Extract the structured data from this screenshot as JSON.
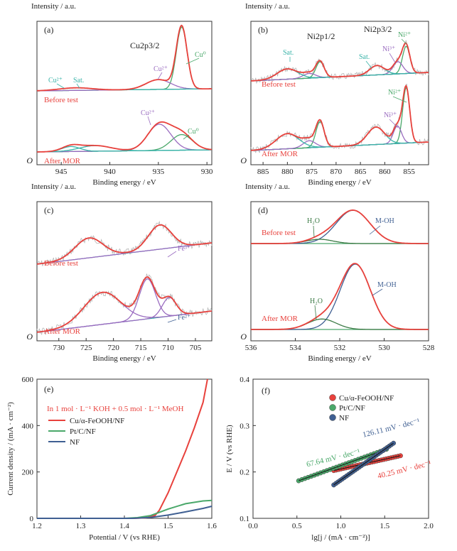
{
  "colors": {
    "red": "#e8413c",
    "green": "#4aa86a",
    "purple": "#9a6cc0",
    "teal": "#39b3a8",
    "orange": "#d9862a",
    "navy": "#3f5f92",
    "raw": "#b6b6b6",
    "background": "#2ba9a4",
    "darkgreen": "#3b7a45"
  },
  "chart_data": [
    {
      "panel": "(a)",
      "type": "line",
      "ylabel": "Intensity / a.u.",
      "xlabel": "Binding energy / eV",
      "xlim": [
        947.5,
        929.5
      ],
      "x_ticks": [
        945,
        940,
        935,
        930
      ],
      "y_zero_label": "O",
      "title": "Cu2p3/2",
      "traces": [
        {
          "label": "Before test",
          "components": [
            {
              "name": "Cu⁰",
              "center": 932.6,
              "fwhm": 1.3,
              "height": 0.95
            },
            {
              "name": "Cu²⁺",
              "center": 935.0,
              "fwhm": 3.0,
              "height": 0.15
            },
            {
              "name": "Sat.",
              "center": 943.5,
              "fwhm": 4.0,
              "height": 0.04
            }
          ]
        },
        {
          "label": "After MOR",
          "components": [
            {
              "name": "Cu⁰",
              "center": 932.6,
              "fwhm": 2.6,
              "height": 0.25
            },
            {
              "name": "Cu²⁺",
              "center": 934.9,
              "fwhm": 2.8,
              "height": 0.42
            },
            {
              "name": "Sat.",
              "center": 944.0,
              "fwhm": 2.2,
              "height": 0.08
            },
            {
              "name": "Sat.",
              "center": 941.5,
              "fwhm": 3.8,
              "height": 0.09
            }
          ]
        }
      ],
      "annotations": [
        "Cu²⁺",
        "Sat.",
        "Cu²⁺",
        "Cu⁰",
        "Cu²⁺",
        "Cu⁰"
      ]
    },
    {
      "panel": "(b)",
      "type": "line",
      "ylabel": "Intensity / a.u.",
      "xlabel": "Binding energy / eV",
      "xlim": [
        887.5,
        851
      ],
      "x_ticks": [
        885,
        880,
        875,
        870,
        865,
        860,
        855
      ],
      "y_zero_label": "O",
      "title_1": "Ni2p1/2",
      "title_2": "Ni2p3/2",
      "traces": [
        {
          "label": "Before test",
          "components": [
            {
              "name": "Ni²⁺",
              "center": 855.6,
              "fwhm": 1.8,
              "height": 0.58
            },
            {
              "name": "Ni³⁺",
              "center": 857.3,
              "fwhm": 2.4,
              "height": 0.26
            },
            {
              "name": "Sat.",
              "center": 861.6,
              "fwhm": 3.6,
              "height": 0.2
            },
            {
              "name": "Ni²⁺",
              "center": 873.3,
              "fwhm": 2.0,
              "height": 0.34
            },
            {
              "name": "Ni³⁺",
              "center": 875.5,
              "fwhm": 3.0,
              "height": 0.1
            },
            {
              "name": "Sat.",
              "center": 880.0,
              "fwhm": 5.0,
              "height": 0.22
            }
          ]
        },
        {
          "label": "After MOR",
          "components": [
            {
              "name": "Ni²⁺",
              "center": 855.6,
              "fwhm": 1.7,
              "height": 0.95
            },
            {
              "name": "Ni³⁺",
              "center": 857.4,
              "fwhm": 2.0,
              "height": 0.3
            },
            {
              "name": "Sat.",
              "center": 861.8,
              "fwhm": 4.2,
              "height": 0.3
            },
            {
              "name": "Ni²⁺",
              "center": 873.3,
              "fwhm": 2.0,
              "height": 0.44
            },
            {
              "name": "Ni³⁺",
              "center": 875.5,
              "fwhm": 3.0,
              "height": 0.12
            },
            {
              "name": "Sat.",
              "center": 880.0,
              "fwhm": 5.5,
              "height": 0.26
            }
          ]
        }
      ],
      "annotations": [
        "Sat.",
        "Sat.",
        "Ni²⁺",
        "Ni³⁺",
        "Ni²⁺",
        "Ni³⁺"
      ]
    },
    {
      "panel": "(c)",
      "type": "line",
      "ylabel": "Intensity / a.u.",
      "xlabel": "Binding energy / eV",
      "xlim": [
        734,
        702
      ],
      "x_ticks": [
        730,
        725,
        720,
        715,
        710,
        705
      ],
      "y_zero_label": "O",
      "traces": [
        {
          "label": "Before test",
          "components": [
            {
              "name": "Fe³⁺",
              "center": 711.5,
              "fwhm": 5.0,
              "height": 0.55
            },
            {
              "name": "Fe³⁺",
              "center": 724.5,
              "fwhm": 6.0,
              "height": 0.45
            }
          ]
        },
        {
          "label": "After MOR",
          "components": [
            {
              "name": "Fe²⁺",
              "center": 713.8,
              "fwhm": 3.5,
              "height": 0.75
            },
            {
              "name": "Fe²⁺",
              "center": 722.0,
              "fwhm": 8.0,
              "height": 0.6
            },
            {
              "name": "Fe²⁺",
              "center": 709.8,
              "fwhm": 3.0,
              "height": 0.35
            }
          ]
        }
      ],
      "annotations": [
        "Fe³⁺",
        "Fe²⁺"
      ]
    },
    {
      "panel": "(d)",
      "type": "line",
      "ylabel": "Intensity / a.u.",
      "xlabel": "Binding energy / eV",
      "xlim": [
        536,
        528
      ],
      "x_ticks": [
        536,
        534,
        532,
        530,
        528
      ],
      "y_zero_label": "O",
      "traces": [
        {
          "label": "Before test",
          "components": [
            {
              "name": "M-OH",
              "center": 531.4,
              "fwhm": 1.8,
              "height": 0.78
            },
            {
              "name": "H₂O",
              "center": 532.9,
              "fwhm": 1.4,
              "height": 0.1
            }
          ]
        },
        {
          "label": "After MOR",
          "components": [
            {
              "name": "M-OH",
              "center": 531.3,
              "fwhm": 1.6,
              "height": 1.0
            },
            {
              "name": "H₂O",
              "center": 532.8,
              "fwhm": 1.5,
              "height": 0.16
            }
          ]
        }
      ],
      "annotations": [
        "H₂O",
        "M-OH",
        "H₂O",
        "M-OH"
      ]
    },
    {
      "panel": "(e)",
      "type": "line",
      "title": "In 1 mol · L⁻¹ KOH + 0.5 mol · L⁻¹ MeOH",
      "xlabel": "Potential / V (vs RHE)",
      "ylabel": "Current density / (mA · cm⁻²)",
      "xlim": [
        1.2,
        1.6
      ],
      "ylim": [
        0,
        600
      ],
      "x_ticks": [
        1.2,
        1.3,
        1.4,
        1.5,
        1.6
      ],
      "y_ticks": [
        0,
        200,
        400,
        600
      ],
      "legend": "top-left",
      "series": [
        {
          "name": "Cu/α-FeOOH/NF",
          "x": [
            1.2,
            1.42,
            1.45,
            1.47,
            1.48,
            1.5,
            1.52,
            1.54,
            1.56,
            1.58,
            1.59
          ],
          "y": [
            0,
            0,
            2,
            12,
            35,
            110,
            200,
            290,
            390,
            500,
            600
          ]
        },
        {
          "name": "Pt/C/NF",
          "x": [
            1.2,
            1.4,
            1.43,
            1.46,
            1.5,
            1.54,
            1.58,
            1.6
          ],
          "y": [
            0,
            0,
            3,
            12,
            40,
            63,
            75,
            77
          ]
        },
        {
          "name": "NF",
          "x": [
            1.2,
            1.42,
            1.46,
            1.5,
            1.54,
            1.58,
            1.6
          ],
          "y": [
            0,
            0,
            4,
            14,
            28,
            43,
            52
          ]
        }
      ]
    },
    {
      "panel": "(f)",
      "type": "scatter",
      "xlabel": "lg[j / (mA · cm⁻²)]",
      "ylabel": "E / V (vs RHE)",
      "xlim": [
        0.0,
        2.0
      ],
      "ylim": [
        0.1,
        0.4
      ],
      "x_ticks": [
        0.0,
        0.5,
        1.0,
        1.5,
        2.0
      ],
      "y_ticks": [
        0.1,
        0.2,
        0.3,
        0.4
      ],
      "legend": "top-left",
      "series": [
        {
          "name": "Cu/α-FeOOH/NF",
          "x_start": 0.92,
          "x_end": 1.68,
          "y_start": 0.203,
          "y_end": 0.235,
          "slope_label": "40.25 mV · dec⁻¹"
        },
        {
          "name": "Pt/C/NF",
          "x_start": 0.52,
          "x_end": 1.52,
          "y_start": 0.181,
          "y_end": 0.249,
          "slope_label": "67.64 mV · dec⁻¹"
        },
        {
          "name": "NF",
          "x_start": 0.92,
          "x_end": 1.6,
          "y_start": 0.172,
          "y_end": 0.262,
          "slope_label": "126.11 mV · dec⁻¹"
        }
      ]
    }
  ]
}
